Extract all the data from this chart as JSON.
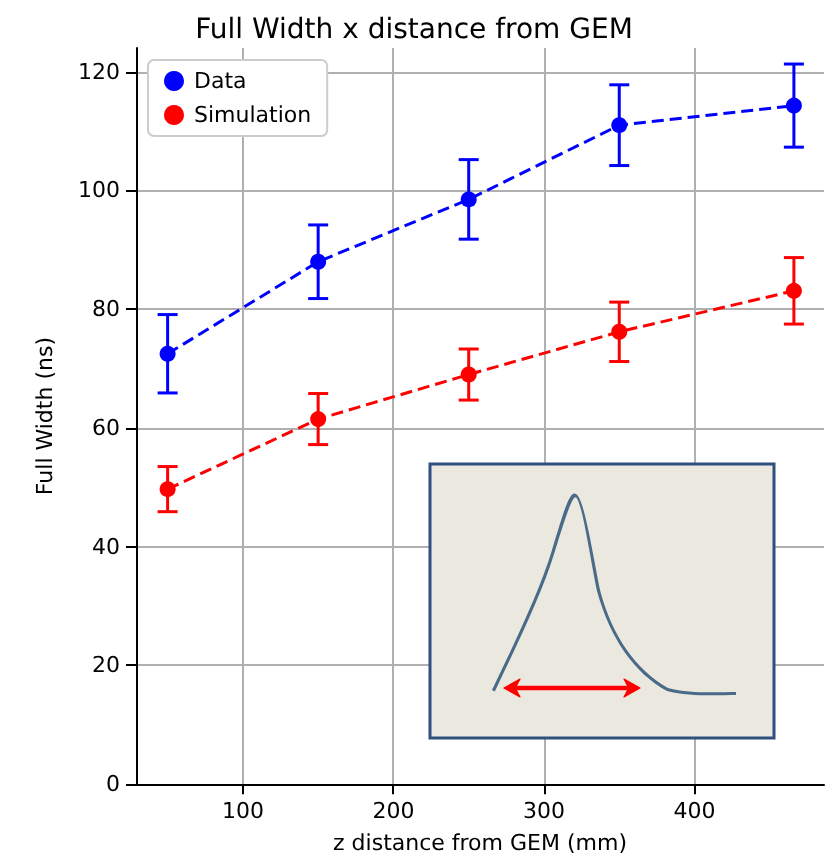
{
  "chart_data": {
    "type": "line",
    "title": "Full Width x distance from GEM",
    "xlabel": "z distance from GEM (mm)",
    "ylabel": "Full Width (ns)",
    "x": [
      50,
      150,
      250,
      350,
      466
    ],
    "series": [
      {
        "name": "Data",
        "color": "#0000ff",
        "values": [
          72.5,
          88,
          98.5,
          111,
          114.3
        ],
        "errors": [
          6.6,
          6.2,
          6.7,
          6.8,
          7
        ]
      },
      {
        "name": "Simulation",
        "color": "#ff0000",
        "values": [
          49.7,
          61.5,
          69,
          76.2,
          83.1
        ],
        "errors": [
          3.8,
          4.3,
          4.3,
          5,
          5.6
        ]
      }
    ],
    "xlim": [
      29,
      486
    ],
    "xticks": [
      100,
      200,
      300,
      400
    ],
    "ylim": [
      0,
      124
    ],
    "yticks": [
      0,
      20,
      40,
      60,
      80,
      100,
      120
    ],
    "grid": true,
    "legend": "top left",
    "marker": "circle",
    "line_style": "dashed"
  }
}
